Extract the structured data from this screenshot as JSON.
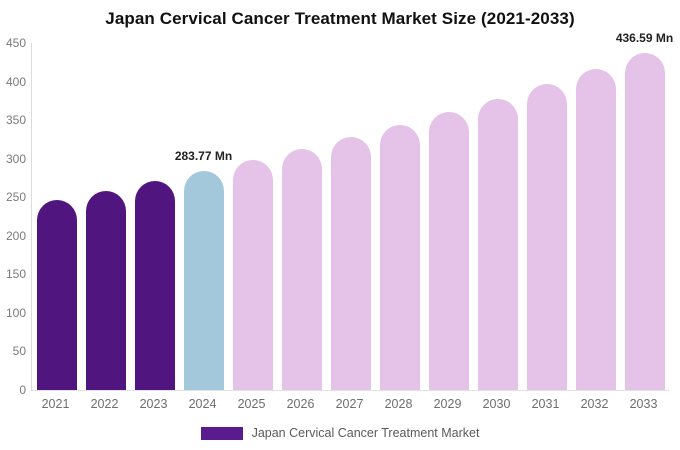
{
  "title": "Japan Cervical Cancer Treatment Market Size (2021-2033)",
  "colors": {
    "historical": "#511580",
    "current": "#A3C8DC",
    "forecast": "#E5C2E8",
    "legend_swatch": "#5A1B8F",
    "axis_line": "#dcdcdc",
    "tick_text": "#7b7b7b",
    "annotation_text": "#222222",
    "title_text": "#111111",
    "legend_text": "#5a5a5a",
    "background": "#ffffff"
  },
  "chart_data": {
    "type": "bar",
    "title": "Japan Cervical Cancer Treatment Market Size (2021-2033)",
    "categories": [
      "2021",
      "2022",
      "2023",
      "2024",
      "2025",
      "2026",
      "2027",
      "2028",
      "2029",
      "2030",
      "2031",
      "2032",
      "2033"
    ],
    "values": [
      245.9,
      257.9,
      270.5,
      283.77,
      297.7,
      312.2,
      327.5,
      343.5,
      360.3,
      377.9,
      396.4,
      415.8,
      436.59
    ],
    "units": "Mn",
    "color_roles": [
      "historical",
      "historical",
      "historical",
      "current",
      "forecast",
      "forecast",
      "forecast",
      "forecast",
      "forecast",
      "forecast",
      "forecast",
      "forecast",
      "forecast"
    ],
    "annotations": [
      {
        "year": "2024",
        "text": "283.77 Mn"
      },
      {
        "year": "2033",
        "text": "436.59 Mn"
      }
    ],
    "xlabel": "",
    "ylabel": "",
    "ylim": [
      0,
      450
    ],
    "yticks": [
      0,
      50,
      100,
      150,
      200,
      250,
      300,
      350,
      400,
      450
    ],
    "grid": false,
    "legend_position": "bottom",
    "legend": [
      {
        "label": "Japan Cervical Cancer Treatment Market",
        "color": "#5A1B8F"
      }
    ]
  }
}
